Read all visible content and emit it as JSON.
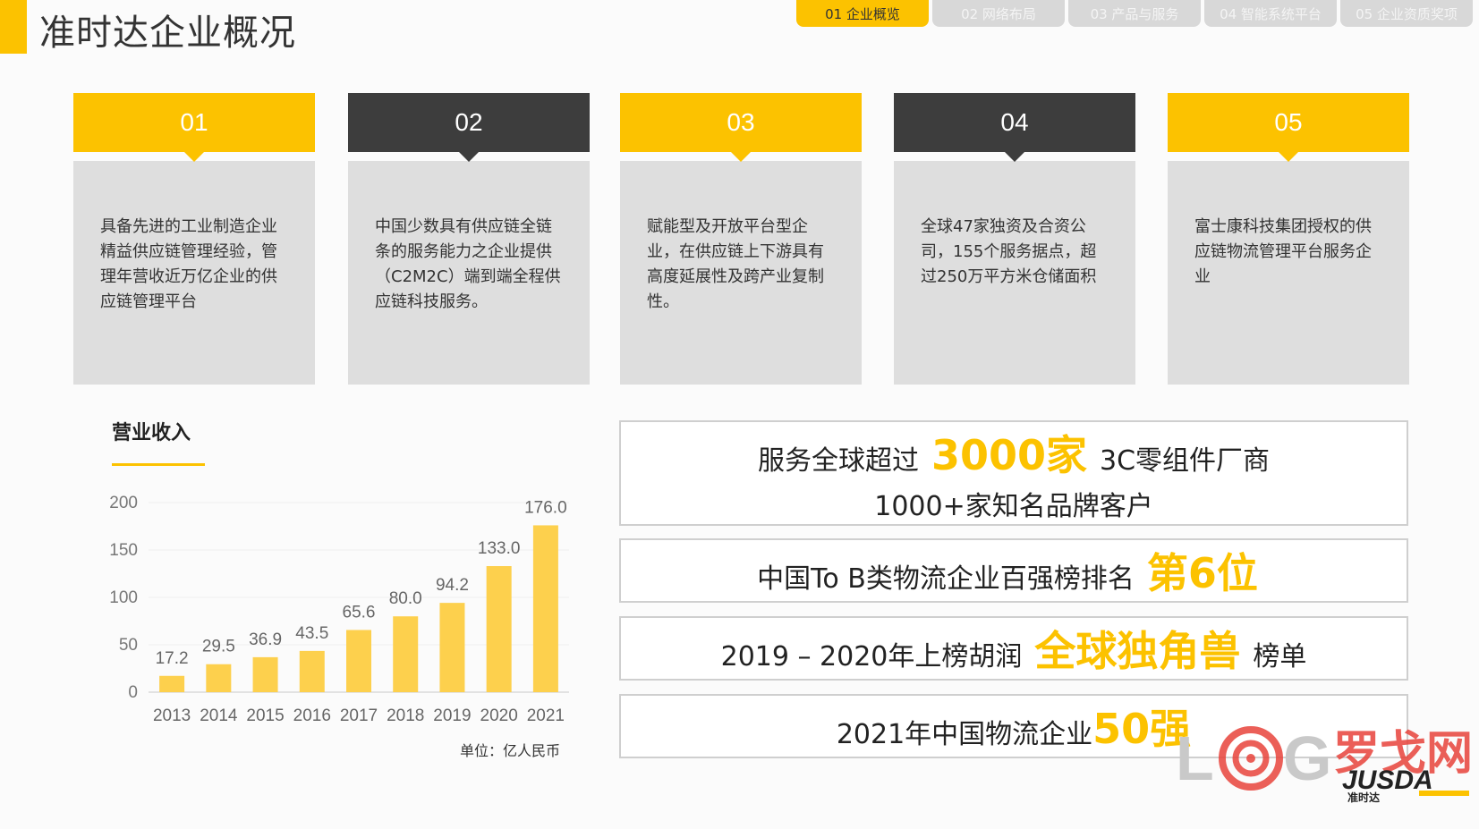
{
  "header": {
    "title": "准时达企业概况",
    "tabs": [
      "01  企业概览",
      "02  网络布局",
      "03  产品与服务",
      "04  智能系统平台",
      "05 企业资质奖项"
    ],
    "active_tab": 0
  },
  "cards": [
    {
      "num": "01",
      "theme": "yellow",
      "text": "具备先进的工业制造企业精益供应链管理经验，管理年营收近万亿企业的供应链管理平台"
    },
    {
      "num": "02",
      "theme": "dark",
      "text": "中国少数具有供应链全链条的服务能力之企业提供（C2M2C）端到端全程供应链科技服务。"
    },
    {
      "num": "03",
      "theme": "yellow",
      "text": "赋能型及开放平台型企业，在供应链上下游具有高度延展性及跨产业复制性。"
    },
    {
      "num": "04",
      "theme": "dark",
      "text": "全球47家独资及合资公司，155个服务据点，超过250万平方米仓储面积"
    },
    {
      "num": "05",
      "theme": "yellow",
      "text": "富士康科技集团授权的供应链物流管理平台服务企业"
    }
  ],
  "revenue": {
    "title": "营业收入",
    "unit_note": "单位：亿人民币"
  },
  "chart_data": {
    "type": "bar",
    "categories": [
      "2013",
      "2014",
      "2015",
      "2016",
      "2017",
      "2018",
      "2019",
      "2020",
      "2021"
    ],
    "values": [
      17.2,
      29.5,
      36.9,
      43.5,
      65.6,
      80.0,
      94.2,
      133.0,
      176.0
    ],
    "value_labels": [
      "17.2",
      "29.5",
      "36.9",
      "43.5",
      "65.6",
      "80.0",
      "94.2",
      "133.0",
      "176.0"
    ],
    "yticks": [
      "0",
      "50",
      "100",
      "150",
      "200"
    ],
    "ylim": [
      0,
      200
    ],
    "bar_color": "#fdd04d",
    "title": "",
    "xlabel": "",
    "ylabel": ""
  },
  "stats": {
    "s1_a": "服务全球超过",
    "s1_hl": "3000家",
    "s1_b": "3C零组件厂商",
    "s1_line2": "1000+家知名品牌客户",
    "s2_a": "中国To B类物流企业百强榜排名",
    "s2_hl": "第6位",
    "s3_a": "2019 – 2020年上榜胡润",
    "s3_hl": "全球独角兽",
    "s3_b": "榜单",
    "s4_a": "2021年中国物流企业",
    "s4_hl": "50强"
  },
  "watermark": {
    "site": "LOG罗戈网",
    "brand": "JUSDA",
    "brand_cn": "准时达"
  },
  "colors": {
    "accent": "#fcc200",
    "dark": "#3d3d3d",
    "card_bg": "#dedede"
  }
}
